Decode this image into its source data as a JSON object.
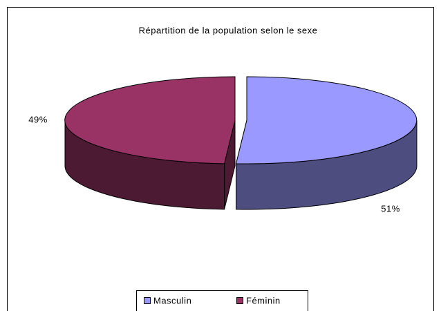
{
  "chart_data": {
    "type": "pie",
    "title": "Répartition de la population selon le sexe",
    "categories": [
      "Masculin",
      "Féminin"
    ],
    "values": [
      51,
      49
    ],
    "value_labels": [
      "51%",
      "49%"
    ],
    "colors": [
      "#9999FF",
      "#993366"
    ],
    "side_colors": [
      "#4D4D80",
      "#4D1A33"
    ],
    "legend": "bottom"
  }
}
